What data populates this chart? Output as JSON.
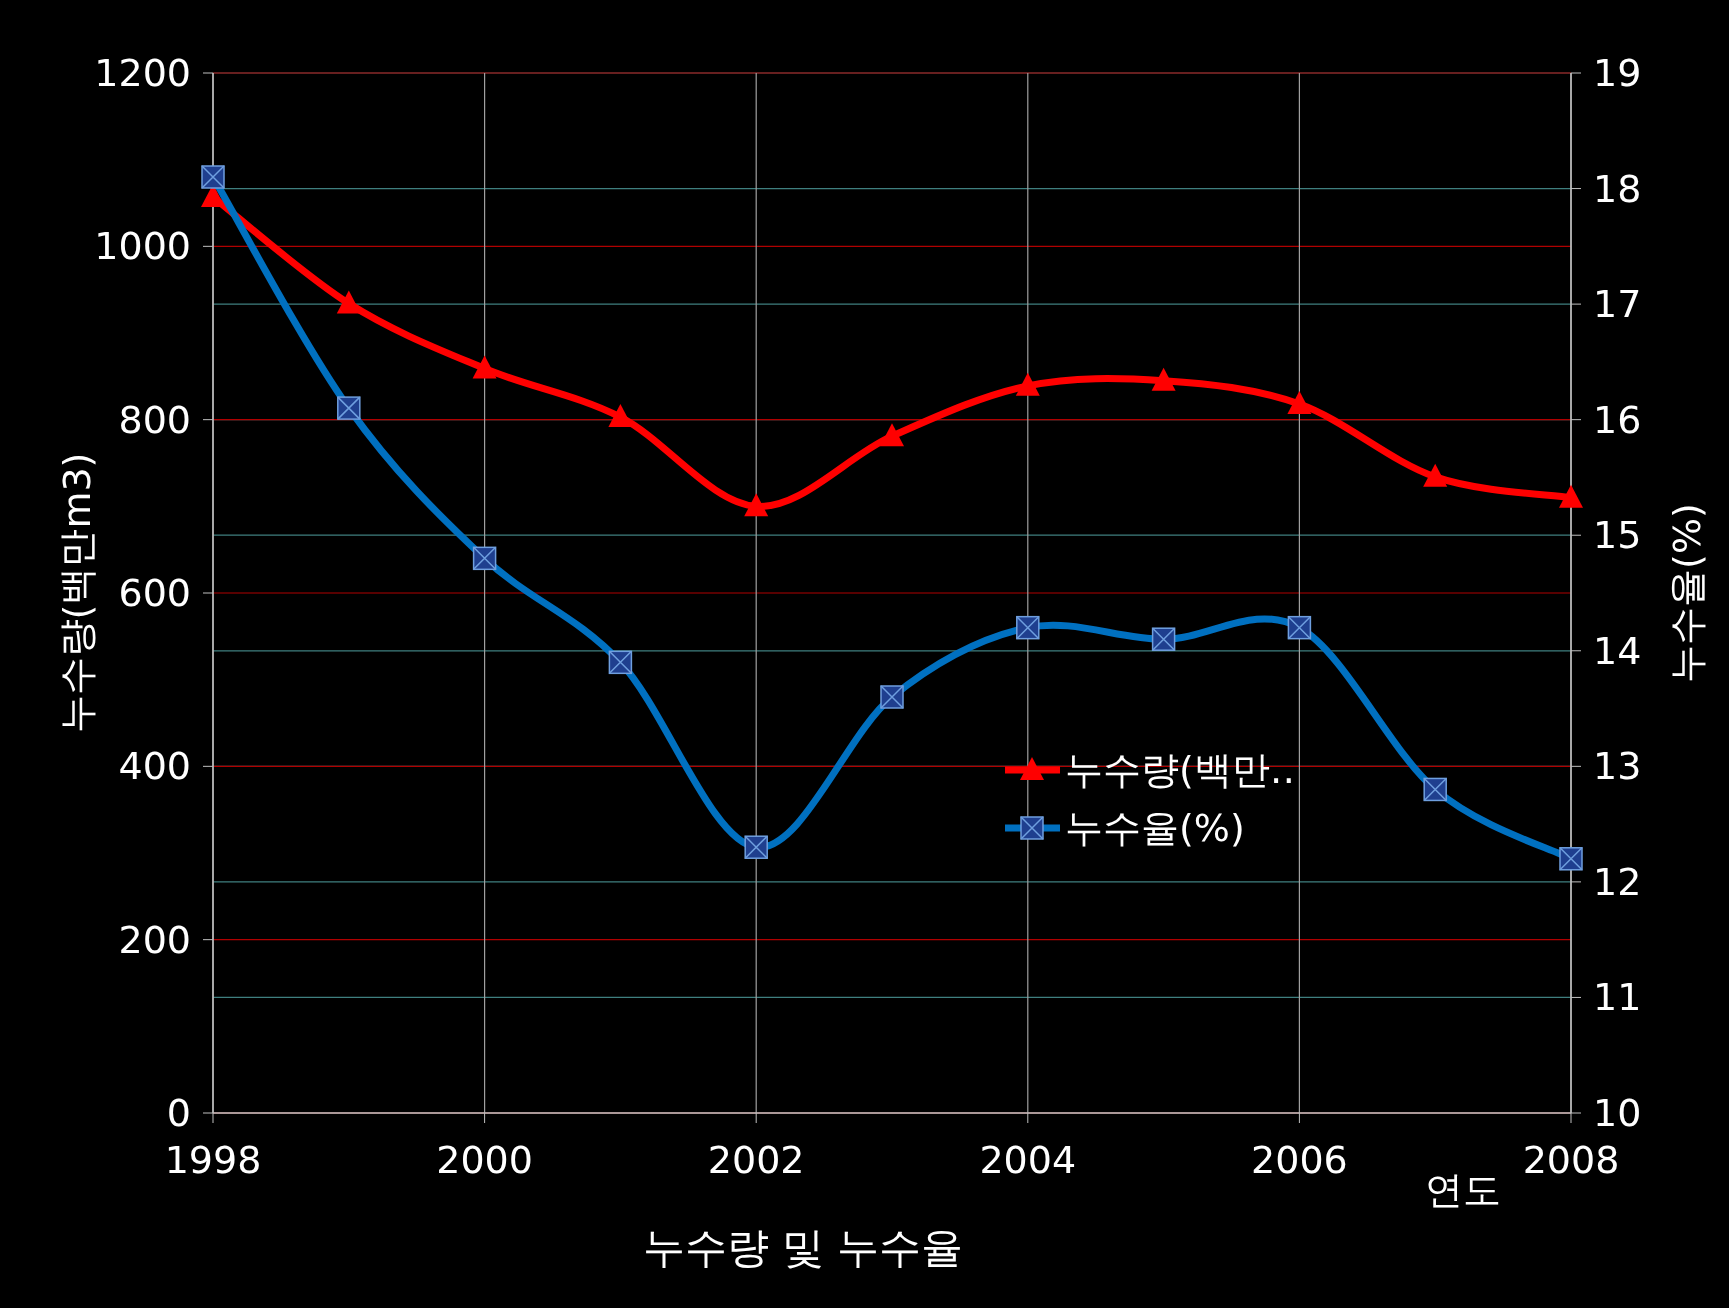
{
  "chart_data": {
    "type": "line",
    "title": "누수량 및 누수율",
    "xlabel": "연도",
    "ylabel": "누수량(백만m3)",
    "y2label": "누수율(%)",
    "x": [
      1998,
      1999,
      2000,
      2001,
      2002,
      2003,
      2004,
      2005,
      2006,
      2007,
      2008
    ],
    "series": [
      {
        "name": "누수량(백만‥",
        "color": "#ff0000",
        "marker": "triangle",
        "values": [
          1057,
          934,
          859,
          803,
          700,
          781,
          839,
          845,
          818,
          734,
          710
        ]
      },
      {
        "name": "누수율(%)",
        "color": "#0070c0",
        "marker": "square",
        "axis": "y2",
        "values": [
          18.1,
          16.1,
          14.8,
          13.9,
          12.3,
          13.6,
          14.2,
          14.1,
          14.2,
          12.8,
          12.2
        ]
      }
    ],
    "xlim": [
      1998,
      2008
    ],
    "xticks": [
      1998,
      2000,
      2002,
      2004,
      2006,
      2008
    ],
    "ylim": [
      0,
      1200
    ],
    "yticks": [
      0,
      200,
      400,
      600,
      800,
      1000,
      1200
    ],
    "y2lim": [
      10,
      19
    ],
    "y2ticks": [
      10,
      11,
      12,
      13,
      14,
      15,
      16,
      17,
      18,
      19
    ],
    "grid": true,
    "legend": "right",
    "line_style": "solid"
  }
}
